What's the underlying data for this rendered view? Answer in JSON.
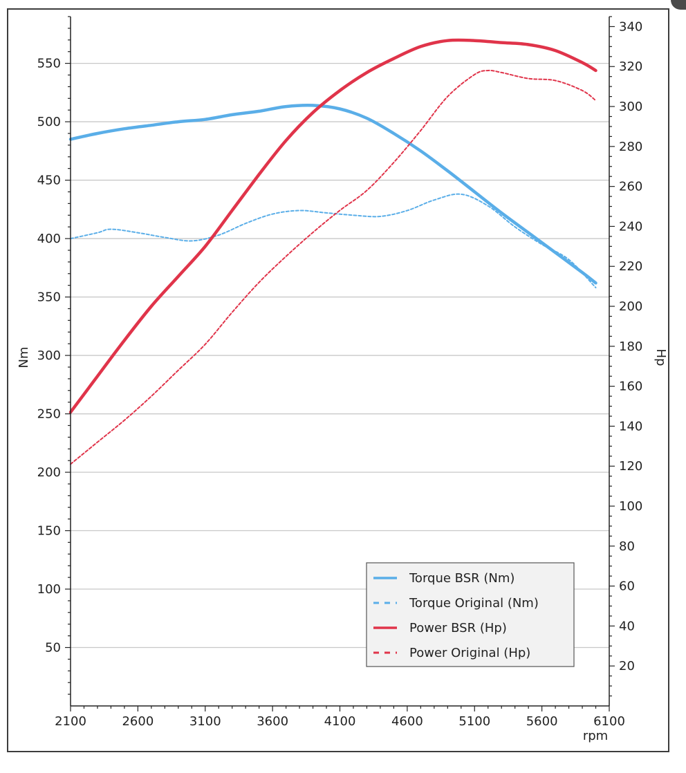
{
  "chart_data": {
    "type": "line",
    "xlabel": "rpm",
    "ylabel_left": "Nm",
    "ylabel_right": "Hp",
    "xlim": [
      2100,
      6100
    ],
    "ylim_left": [
      0,
      590
    ],
    "ylim_right": [
      0,
      345
    ],
    "x_ticks": [
      2100,
      2600,
      3100,
      3600,
      4100,
      4600,
      5100,
      5600,
      6100
    ],
    "y_left_ticks": [
      50,
      100,
      150,
      200,
      250,
      300,
      350,
      400,
      450,
      500,
      550
    ],
    "y_right_ticks": [
      20,
      40,
      60,
      80,
      100,
      120,
      140,
      160,
      180,
      200,
      220,
      240,
      260,
      280,
      300,
      320,
      340
    ],
    "grid": true,
    "legend_position": "bottom-right",
    "colors": {
      "torque": "#5aaee8",
      "power": "#e0344a"
    },
    "series": [
      {
        "name": "Torque BSR (Nm)",
        "axis": "left",
        "style": "solid",
        "color": "#5aaee8",
        "points": [
          [
            2100,
            485
          ],
          [
            2300,
            490
          ],
          [
            2500,
            494
          ],
          [
            2700,
            497
          ],
          [
            2900,
            500
          ],
          [
            3100,
            502
          ],
          [
            3300,
            506
          ],
          [
            3500,
            509
          ],
          [
            3700,
            513
          ],
          [
            3900,
            514
          ],
          [
            4100,
            511
          ],
          [
            4300,
            503
          ],
          [
            4500,
            490
          ],
          [
            4700,
            475
          ],
          [
            4900,
            458
          ],
          [
            5100,
            440
          ],
          [
            5300,
            422
          ],
          [
            5500,
            405
          ],
          [
            5700,
            388
          ],
          [
            5900,
            371
          ],
          [
            6000,
            362
          ]
        ]
      },
      {
        "name": "Torque Original (Nm)",
        "axis": "left",
        "style": "dashed",
        "color": "#5aaee8",
        "points": [
          [
            2100,
            400
          ],
          [
            2300,
            405
          ],
          [
            2400,
            408
          ],
          [
            2600,
            405
          ],
          [
            2800,
            401
          ],
          [
            3000,
            398
          ],
          [
            3200,
            403
          ],
          [
            3400,
            413
          ],
          [
            3600,
            421
          ],
          [
            3800,
            424
          ],
          [
            4000,
            422
          ],
          [
            4200,
            420
          ],
          [
            4400,
            419
          ],
          [
            4600,
            424
          ],
          [
            4800,
            433
          ],
          [
            5000,
            438
          ],
          [
            5200,
            428
          ],
          [
            5400,
            410
          ],
          [
            5600,
            395
          ],
          [
            5800,
            382
          ],
          [
            6000,
            358
          ]
        ]
      },
      {
        "name": "Power BSR (Hp)",
        "axis": "right",
        "style": "solid",
        "color": "#e0344a",
        "points": [
          [
            2100,
            147
          ],
          [
            2300,
            165
          ],
          [
            2500,
            183
          ],
          [
            2700,
            200
          ],
          [
            2900,
            215
          ],
          [
            3100,
            230
          ],
          [
            3300,
            248
          ],
          [
            3500,
            266
          ],
          [
            3700,
            283
          ],
          [
            3900,
            297
          ],
          [
            4100,
            308
          ],
          [
            4300,
            317
          ],
          [
            4500,
            324
          ],
          [
            4700,
            330
          ],
          [
            4900,
            333
          ],
          [
            5100,
            333
          ],
          [
            5300,
            332
          ],
          [
            5500,
            331
          ],
          [
            5700,
            328
          ],
          [
            5900,
            322
          ],
          [
            6000,
            318
          ]
        ]
      },
      {
        "name": "Power Original (Hp)",
        "axis": "right",
        "style": "dashed",
        "color": "#e0344a",
        "points": [
          [
            2100,
            121
          ],
          [
            2300,
            132
          ],
          [
            2500,
            143
          ],
          [
            2700,
            155
          ],
          [
            2900,
            168
          ],
          [
            3100,
            181
          ],
          [
            3300,
            197
          ],
          [
            3500,
            212
          ],
          [
            3700,
            225
          ],
          [
            3900,
            237
          ],
          [
            4100,
            248
          ],
          [
            4300,
            258
          ],
          [
            4500,
            272
          ],
          [
            4700,
            288
          ],
          [
            4900,
            305
          ],
          [
            5100,
            316
          ],
          [
            5200,
            318
          ],
          [
            5300,
            317
          ],
          [
            5500,
            314
          ],
          [
            5700,
            313
          ],
          [
            5900,
            308
          ],
          [
            6000,
            303
          ]
        ]
      }
    ]
  }
}
